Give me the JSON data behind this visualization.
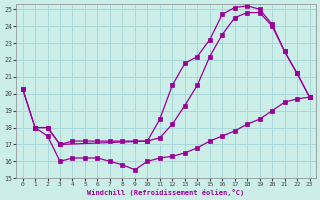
{
  "xlabel": "Windchill (Refroidissement éolien,°C)",
  "bg_color": "#cceee8",
  "grid_color": "#aad8d8",
  "line_color": "#990099",
  "xlim": [
    -0.5,
    23.5
  ],
  "ylim": [
    15,
    25.3
  ],
  "yticks": [
    15,
    16,
    17,
    18,
    19,
    20,
    21,
    22,
    23,
    24,
    25
  ],
  "xticks": [
    0,
    1,
    2,
    3,
    4,
    5,
    6,
    7,
    8,
    9,
    10,
    11,
    12,
    13,
    14,
    15,
    16,
    17,
    18,
    19,
    20,
    21,
    22,
    23
  ],
  "line1_x": [
    0,
    1,
    2,
    3,
    4,
    5,
    6,
    7,
    8,
    9,
    10,
    11,
    12,
    13,
    14,
    15,
    16,
    17,
    18,
    19,
    20,
    21,
    22,
    23
  ],
  "line1_y": [
    20.3,
    18.0,
    18.0,
    17.0,
    17.2,
    17.2,
    17.2,
    17.2,
    17.2,
    17.2,
    17.2,
    17.4,
    18.2,
    19.3,
    20.5,
    22.2,
    23.5,
    24.5,
    24.8,
    24.8,
    24.0,
    22.5,
    21.2,
    19.8
  ],
  "line2_x": [
    0,
    1,
    2,
    3,
    10,
    11,
    12,
    13,
    14,
    15,
    16,
    17,
    18,
    19,
    20,
    21,
    22,
    23
  ],
  "line2_y": [
    20.3,
    18.0,
    18.0,
    17.0,
    17.2,
    18.5,
    20.5,
    21.8,
    22.2,
    23.2,
    24.7,
    25.1,
    25.2,
    25.0,
    24.1,
    22.5,
    21.2,
    19.8
  ],
  "line3_x": [
    1,
    2,
    3,
    4,
    5,
    6,
    7,
    8,
    9,
    10,
    11,
    12,
    13,
    14,
    15,
    16,
    17,
    18,
    19,
    20,
    21,
    22,
    23
  ],
  "line3_y": [
    18.0,
    17.5,
    16.0,
    16.2,
    16.2,
    16.2,
    16.0,
    15.8,
    15.5,
    16.0,
    16.2,
    16.3,
    16.5,
    16.8,
    17.2,
    17.5,
    17.8,
    18.2,
    18.5,
    19.0,
    19.5,
    19.7,
    19.8
  ]
}
